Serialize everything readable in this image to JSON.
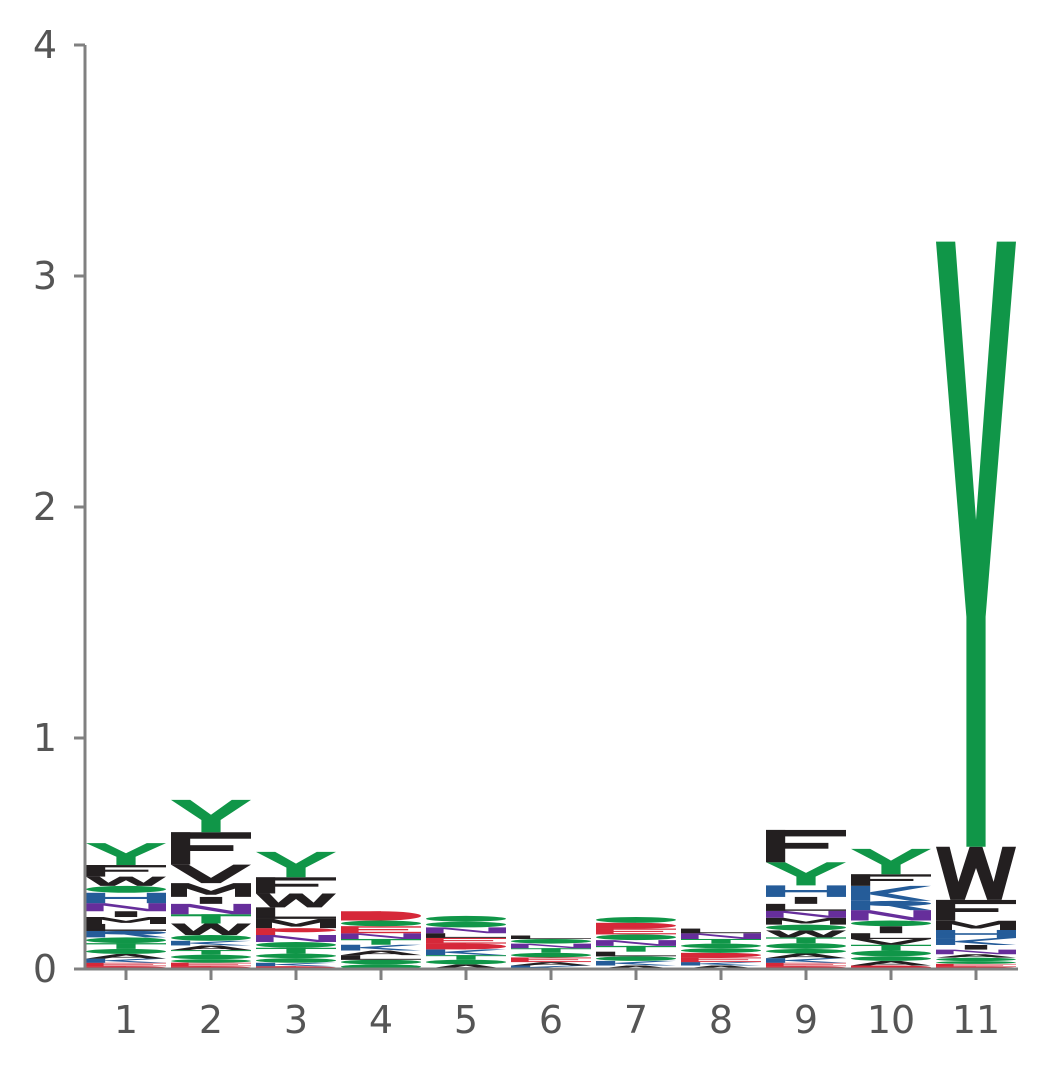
{
  "chart_data": {
    "type": "sequence-logo",
    "title": "",
    "xlabel": "",
    "ylabel": "",
    "ylim": [
      0,
      4
    ],
    "y_ticks": [
      "0",
      "1",
      "2",
      "3",
      "4"
    ],
    "x_ticks": [
      "1",
      "2",
      "3",
      "4",
      "5",
      "6",
      "7",
      "8",
      "9",
      "10",
      "11"
    ],
    "grid": false,
    "legend": "none",
    "colors": {
      "green": "#109648",
      "black": "#231f20",
      "blue": "#255c99",
      "purple": "#662e9b",
      "red": "#d62839",
      "axis": "#808080",
      "tick_text": "#555555"
    },
    "positions": [
      {
        "position": "1",
        "stack": [
          {
            "letter": "D",
            "height": 0.012,
            "color": "red"
          },
          {
            "letter": "E",
            "height": 0.015,
            "color": "red"
          },
          {
            "letter": "K",
            "height": 0.018,
            "color": "blue"
          },
          {
            "letter": "A",
            "height": 0.02,
            "color": "black"
          },
          {
            "letter": "G",
            "height": 0.022,
            "color": "green"
          },
          {
            "letter": "T",
            "height": 0.025,
            "color": "green"
          },
          {
            "letter": "S",
            "height": 0.025,
            "color": "green"
          },
          {
            "letter": "R",
            "height": 0.028,
            "color": "blue"
          },
          {
            "letter": "L",
            "height": 0.03,
            "color": "black"
          },
          {
            "letter": "M",
            "height": 0.03,
            "color": "black"
          },
          {
            "letter": "I",
            "height": 0.025,
            "color": "black"
          },
          {
            "letter": "N",
            "height": 0.035,
            "color": "purple"
          },
          {
            "letter": "H",
            "height": 0.045,
            "color": "blue"
          },
          {
            "letter": "C",
            "height": 0.03,
            "color": "green"
          },
          {
            "letter": "W",
            "height": 0.04,
            "color": "black"
          },
          {
            "letter": "F",
            "height": 0.05,
            "color": "black"
          },
          {
            "letter": "Y",
            "height": 0.095,
            "color": "green"
          }
        ]
      },
      {
        "position": "2",
        "stack": [
          {
            "letter": "D",
            "height": 0.012,
            "color": "red"
          },
          {
            "letter": "E",
            "height": 0.015,
            "color": "red"
          },
          {
            "letter": "G",
            "height": 0.015,
            "color": "green"
          },
          {
            "letter": "S",
            "height": 0.02,
            "color": "green"
          },
          {
            "letter": "T",
            "height": 0.02,
            "color": "green"
          },
          {
            "letter": "A",
            "height": 0.02,
            "color": "black"
          },
          {
            "letter": "K",
            "height": 0.02,
            "color": "blue"
          },
          {
            "letter": "C",
            "height": 0.025,
            "color": "green"
          },
          {
            "letter": "W",
            "height": 0.05,
            "color": "black"
          },
          {
            "letter": "T",
            "height": 0.04,
            "color": "green"
          },
          {
            "letter": "N",
            "height": 0.045,
            "color": "purple"
          },
          {
            "letter": "I",
            "height": 0.03,
            "color": "black"
          },
          {
            "letter": "M",
            "height": 0.06,
            "color": "black"
          },
          {
            "letter": "V",
            "height": 0.08,
            "color": "black"
          },
          {
            "letter": "F",
            "height": 0.14,
            "color": "black"
          },
          {
            "letter": "Y",
            "height": 0.14,
            "color": "green"
          }
        ]
      },
      {
        "position": "3",
        "stack": [
          {
            "letter": "D",
            "height": 0.012,
            "color": "red"
          },
          {
            "letter": "K",
            "height": 0.015,
            "color": "blue"
          },
          {
            "letter": "G",
            "height": 0.02,
            "color": "green"
          },
          {
            "letter": "S",
            "height": 0.02,
            "color": "green"
          },
          {
            "letter": "T",
            "height": 0.025,
            "color": "green"
          },
          {
            "letter": "C",
            "height": 0.025,
            "color": "green"
          },
          {
            "letter": "N",
            "height": 0.03,
            "color": "purple"
          },
          {
            "letter": "P",
            "height": 0.03,
            "color": "red"
          },
          {
            "letter": "M",
            "height": 0.04,
            "color": "black"
          },
          {
            "letter": "L",
            "height": 0.05,
            "color": "black"
          },
          {
            "letter": "W",
            "height": 0.06,
            "color": "black"
          },
          {
            "letter": "F",
            "height": 0.07,
            "color": "black"
          },
          {
            "letter": "Y",
            "height": 0.11,
            "color": "green"
          }
        ]
      },
      {
        "position": "4",
        "stack": [
          {
            "letter": "G",
            "height": 0.02,
            "color": "green"
          },
          {
            "letter": "S",
            "height": 0.02,
            "color": "green"
          },
          {
            "letter": "L",
            "height": 0.02,
            "color": "black"
          },
          {
            "letter": "A",
            "height": 0.02,
            "color": "black"
          },
          {
            "letter": "K",
            "height": 0.025,
            "color": "blue"
          },
          {
            "letter": "T",
            "height": 0.025,
            "color": "green"
          },
          {
            "letter": "N",
            "height": 0.025,
            "color": "purple"
          },
          {
            "letter": "E",
            "height": 0.03,
            "color": "red"
          },
          {
            "letter": "C",
            "height": 0.025,
            "color": "green"
          },
          {
            "letter": "D",
            "height": 0.04,
            "color": "red"
          }
        ]
      },
      {
        "position": "5",
        "stack": [
          {
            "letter": "A",
            "height": 0.02,
            "color": "black"
          },
          {
            "letter": "G",
            "height": 0.02,
            "color": "green"
          },
          {
            "letter": "T",
            "height": 0.02,
            "color": "green"
          },
          {
            "letter": "K",
            "height": 0.025,
            "color": "blue"
          },
          {
            "letter": "D",
            "height": 0.025,
            "color": "red"
          },
          {
            "letter": "E",
            "height": 0.025,
            "color": "red"
          },
          {
            "letter": "L",
            "height": 0.02,
            "color": "black"
          },
          {
            "letter": "N",
            "height": 0.025,
            "color": "purple"
          },
          {
            "letter": "S",
            "height": 0.025,
            "color": "green"
          },
          {
            "letter": "C",
            "height": 0.025,
            "color": "green"
          }
        ]
      },
      {
        "position": "6",
        "stack": [
          {
            "letter": "K",
            "height": 0.015,
            "color": "blue"
          },
          {
            "letter": "A",
            "height": 0.015,
            "color": "black"
          },
          {
            "letter": "E",
            "height": 0.02,
            "color": "red"
          },
          {
            "letter": "G",
            "height": 0.02,
            "color": "green"
          },
          {
            "letter": "T",
            "height": 0.02,
            "color": "green"
          },
          {
            "letter": "N",
            "height": 0.02,
            "color": "purple"
          },
          {
            "letter": "S",
            "height": 0.02,
            "color": "green"
          },
          {
            "letter": "L",
            "height": 0.015,
            "color": "black"
          }
        ]
      },
      {
        "position": "7",
        "stack": [
          {
            "letter": "A",
            "height": 0.015,
            "color": "black"
          },
          {
            "letter": "K",
            "height": 0.02,
            "color": "blue"
          },
          {
            "letter": "G",
            "height": 0.02,
            "color": "green"
          },
          {
            "letter": "L",
            "height": 0.02,
            "color": "black"
          },
          {
            "letter": "T",
            "height": 0.025,
            "color": "green"
          },
          {
            "letter": "N",
            "height": 0.025,
            "color": "purple"
          },
          {
            "letter": "S",
            "height": 0.025,
            "color": "green"
          },
          {
            "letter": "E",
            "height": 0.025,
            "color": "red"
          },
          {
            "letter": "D",
            "height": 0.025,
            "color": "red"
          },
          {
            "letter": "C",
            "height": 0.025,
            "color": "green"
          }
        ]
      },
      {
        "position": "8",
        "stack": [
          {
            "letter": "A",
            "height": 0.015,
            "color": "black"
          },
          {
            "letter": "K",
            "height": 0.015,
            "color": "blue"
          },
          {
            "letter": "E",
            "height": 0.02,
            "color": "red"
          },
          {
            "letter": "D",
            "height": 0.02,
            "color": "red"
          },
          {
            "letter": "S",
            "height": 0.02,
            "color": "green"
          },
          {
            "letter": "G",
            "height": 0.02,
            "color": "green"
          },
          {
            "letter": "T",
            "height": 0.02,
            "color": "green"
          },
          {
            "letter": "N",
            "height": 0.025,
            "color": "purple"
          },
          {
            "letter": "L",
            "height": 0.02,
            "color": "black"
          }
        ]
      },
      {
        "position": "9",
        "stack": [
          {
            "letter": "D",
            "height": 0.012,
            "color": "red"
          },
          {
            "letter": "E",
            "height": 0.015,
            "color": "red"
          },
          {
            "letter": "K",
            "height": 0.02,
            "color": "blue"
          },
          {
            "letter": "A",
            "height": 0.02,
            "color": "black"
          },
          {
            "letter": "G",
            "height": 0.02,
            "color": "green"
          },
          {
            "letter": "S",
            "height": 0.025,
            "color": "green"
          },
          {
            "letter": "T",
            "height": 0.025,
            "color": "green"
          },
          {
            "letter": "W",
            "height": 0.03,
            "color": "black"
          },
          {
            "letter": "C",
            "height": 0.025,
            "color": "green"
          },
          {
            "letter": "M",
            "height": 0.03,
            "color": "black"
          },
          {
            "letter": "N",
            "height": 0.03,
            "color": "purple"
          },
          {
            "letter": "L",
            "height": 0.03,
            "color": "black"
          },
          {
            "letter": "I",
            "height": 0.03,
            "color": "black"
          },
          {
            "letter": "H",
            "height": 0.05,
            "color": "blue"
          },
          {
            "letter": "Y",
            "height": 0.1,
            "color": "green"
          },
          {
            "letter": "F",
            "height": 0.14,
            "color": "black"
          }
        ]
      },
      {
        "position": "10",
        "stack": [
          {
            "letter": "D",
            "height": 0.015,
            "color": "red"
          },
          {
            "letter": "A",
            "height": 0.02,
            "color": "black"
          },
          {
            "letter": "G",
            "height": 0.02,
            "color": "green"
          },
          {
            "letter": "S",
            "height": 0.025,
            "color": "green"
          },
          {
            "letter": "T",
            "height": 0.025,
            "color": "green"
          },
          {
            "letter": "V",
            "height": 0.025,
            "color": "black"
          },
          {
            "letter": "L",
            "height": 0.025,
            "color": "black"
          },
          {
            "letter": "I",
            "height": 0.03,
            "color": "black"
          },
          {
            "letter": "C",
            "height": 0.025,
            "color": "green"
          },
          {
            "letter": "N",
            "height": 0.045,
            "color": "purple"
          },
          {
            "letter": "R",
            "height": 0.04,
            "color": "blue"
          },
          {
            "letter": "K",
            "height": 0.065,
            "color": "blue"
          },
          {
            "letter": "F",
            "height": 0.05,
            "color": "black"
          },
          {
            "letter": "Y",
            "height": 0.11,
            "color": "green"
          }
        ]
      },
      {
        "position": "11",
        "stack": [
          {
            "letter": "D",
            "height": 0.01,
            "color": "red"
          },
          {
            "letter": "E",
            "height": 0.012,
            "color": "red"
          },
          {
            "letter": "G",
            "height": 0.012,
            "color": "green"
          },
          {
            "letter": "S",
            "height": 0.015,
            "color": "green"
          },
          {
            "letter": "A",
            "height": 0.015,
            "color": "black"
          },
          {
            "letter": "N",
            "height": 0.02,
            "color": "purple"
          },
          {
            "letter": "I",
            "height": 0.02,
            "color": "black"
          },
          {
            "letter": "K",
            "height": 0.03,
            "color": "blue"
          },
          {
            "letter": "H",
            "height": 0.035,
            "color": "blue"
          },
          {
            "letter": "M",
            "height": 0.04,
            "color": "black"
          },
          {
            "letter": "F",
            "height": 0.09,
            "color": "black"
          },
          {
            "letter": "W",
            "height": 0.23,
            "color": "black"
          },
          {
            "letter": "Y",
            "height": 2.62,
            "color": "green"
          }
        ]
      }
    ]
  }
}
